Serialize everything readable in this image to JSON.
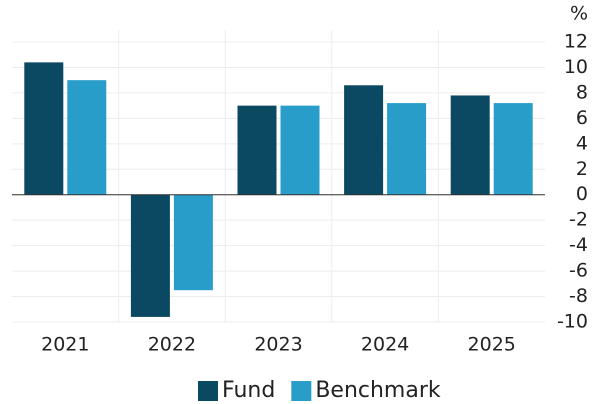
{
  "chart_data": {
    "type": "bar",
    "y_label": "%",
    "categories": [
      "2021",
      "2022",
      "2023",
      "2024",
      "2025"
    ],
    "series": [
      {
        "name": "Fund",
        "color": "#0b4862",
        "values": [
          10.4,
          -9.6,
          7.0,
          8.6,
          7.8
        ]
      },
      {
        "name": "Benchmark",
        "color": "#289dc9",
        "values": [
          9.0,
          -7.5,
          7.0,
          7.2,
          7.2
        ]
      }
    ],
    "ylim": [
      -10,
      12
    ],
    "yticks": [
      12,
      10,
      8,
      6,
      4,
      2,
      0,
      -2,
      -4,
      -6,
      -8,
      -10
    ],
    "grid": true,
    "legend": "bottom"
  }
}
